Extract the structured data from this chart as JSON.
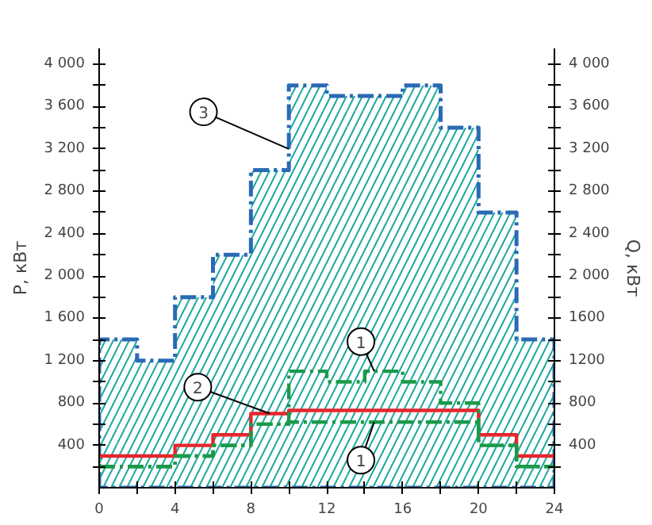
{
  "chart_data": {
    "type": "step",
    "ylabel": "P, кВт",
    "y2label": "Q, кВт",
    "x": [
      0,
      2,
      4,
      6,
      8,
      10,
      12,
      14,
      16,
      18,
      20,
      22,
      24
    ],
    "series": [
      {
        "type": "area",
        "color": "#2a6ab5",
        "line_style": "dashed",
        "values": [
          1400,
          1200,
          1800,
          2200,
          3000,
          3800,
          3700,
          3700,
          3800,
          3400,
          2600,
          1400,
          1400
        ]
      },
      {
        "color": "#e8262c",
        "line_style": "solid",
        "values": [
          300,
          300,
          400,
          500,
          700,
          730,
          730,
          730,
          730,
          730,
          500,
          300,
          300
        ]
      },
      {
        "color": "#1a9a4a",
        "line_style": "dashed",
        "values": [
          200,
          200,
          300,
          400,
          600,
          1100,
          1000,
          1100,
          1000,
          800,
          400,
          200,
          200
        ]
      },
      {
        "color": "#1a9a4a",
        "line_style": "dashed",
        "values": [
          200,
          200,
          300,
          400,
          600,
          620,
          620,
          620,
          620,
          620,
          400,
          200,
          200
        ]
      }
    ],
    "annotations": [
      {
        "text": "3",
        "x": 10,
        "y": 3200
      },
      {
        "text": "2",
        "x": 9,
        "y": 700
      },
      {
        "text": "1",
        "x": 14.5,
        "y": 1100
      },
      {
        "text": "1",
        "x": 14.5,
        "y": 620
      }
    ],
    "xlim": [
      0,
      24
    ],
    "xticks": [
      0,
      {
        "value": 2,
        "label": null
      },
      4,
      {
        "value": 6,
        "label": null
      },
      8,
      {
        "value": 10,
        "label": null
      },
      12,
      {
        "value": 14,
        "label": null
      },
      16,
      {
        "value": 18,
        "label": null
      },
      20,
      {
        "value": 22,
        "label": null
      },
      24
    ],
    "ylim": [
      0,
      4150
    ],
    "yticks": [
      {
        "value": 200,
        "label": null
      },
      400,
      {
        "value": 600,
        "label": null
      },
      800,
      {
        "value": 1000,
        "label": null
      },
      {
        "value": 1200,
        "label": "1 200"
      },
      {
        "value": 1400,
        "label": null
      },
      {
        "value": 1600,
        "label": "1 600"
      },
      {
        "value": 1800,
        "label": null
      },
      {
        "value": 2000,
        "label": "2 000"
      },
      {
        "value": 2200,
        "label": null
      },
      {
        "value": 2400,
        "label": "2 400"
      },
      {
        "value": 2600,
        "label": null
      },
      {
        "value": 2800,
        "label": "2 800"
      },
      {
        "value": 3000,
        "label": null
      },
      {
        "value": 3200,
        "label": "3 200"
      },
      {
        "value": 3400,
        "label": null
      },
      {
        "value": 3600,
        "label": "3 600"
      },
      {
        "value": 3800,
        "label": null
      },
      {
        "value": 4000,
        "label": "4 000"
      }
    ],
    "y2lim": [
      0,
      4150
    ],
    "y2ticks": [
      {
        "value": 200,
        "label": null
      },
      400,
      {
        "value": 600,
        "label": null
      },
      800,
      {
        "value": 1000,
        "label": null
      },
      1200,
      {
        "value": 1400,
        "label": null
      },
      1600,
      {
        "value": 1800,
        "label": null
      },
      {
        "value": 2000,
        "label": "2 000"
      },
      {
        "value": 2200,
        "label": null
      },
      {
        "value": 2400,
        "label": "2 400"
      },
      {
        "value": 2600,
        "label": null
      },
      {
        "value": 2800,
        "label": "2 800"
      },
      {
        "value": 3000,
        "label": null
      },
      {
        "value": 3200,
        "label": "3 200"
      },
      {
        "value": 3400,
        "label": null
      },
      {
        "value": 3600,
        "label": "3 600"
      },
      {
        "value": 3800,
        "label": null
      },
      {
        "value": 4000,
        "label": "4 000"
      }
    ]
  }
}
